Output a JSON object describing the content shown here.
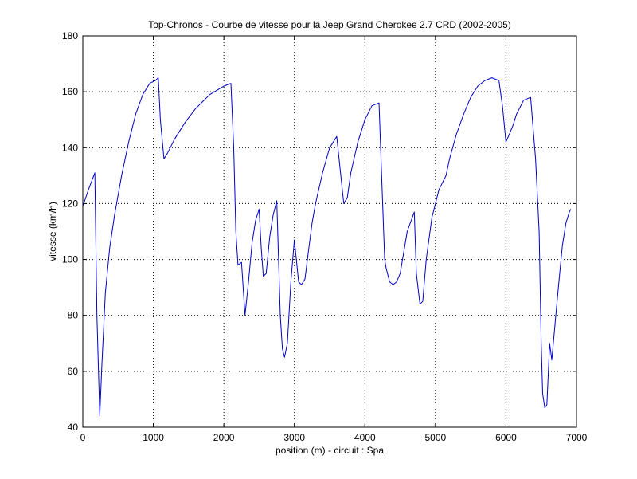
{
  "chart_data": {
    "type": "line",
    "title": "Top-Chronos - Courbe de vitesse pour la Jeep Grand Cherokee 2.7 CRD (2002-2005)",
    "xlabel": "position (m) - circuit : Spa",
    "ylabel": "vitesse (km/h)",
    "xlim": [
      0,
      7000
    ],
    "ylim": [
      40,
      180
    ],
    "xticks": [
      0,
      1000,
      2000,
      3000,
      4000,
      5000,
      6000,
      7000
    ],
    "yticks": [
      40,
      60,
      80,
      100,
      120,
      140,
      160,
      180
    ],
    "grid": true,
    "line_color": "#0000cc",
    "series": [
      {
        "x": [
          0,
          80,
          170,
          200,
          240,
          270,
          320,
          380,
          450,
          550,
          650,
          750,
          850,
          950,
          1030,
          1070,
          1100,
          1150,
          1200,
          1300,
          1450,
          1600,
          1800,
          2000,
          2100,
          2140,
          2170,
          2200,
          2250,
          2300,
          2350,
          2400,
          2450,
          2500,
          2530,
          2560,
          2600,
          2650,
          2700,
          2750,
          2800,
          2830,
          2860,
          2900,
          2950,
          3000,
          3060,
          3100,
          3150,
          3200,
          3250,
          3300,
          3400,
          3500,
          3600,
          3700,
          3750,
          3800,
          3900,
          4000,
          4100,
          4200,
          4280,
          4300,
          4350,
          4400,
          4450,
          4500,
          4600,
          4700,
          4730,
          4780,
          4820,
          4870,
          4950,
          5050,
          5150,
          5200,
          5300,
          5400,
          5500,
          5600,
          5700,
          5800,
          5900,
          5950,
          6000,
          6050,
          6100,
          6150,
          6250,
          6350,
          6420,
          6470,
          6500,
          6520,
          6550,
          6580,
          6620,
          6650,
          6700,
          6750,
          6800,
          6850,
          6900,
          6920
        ],
        "y": [
          119,
          125,
          131,
          80,
          44,
          62,
          88,
          104,
          116,
          130,
          142,
          152,
          159,
          163,
          164,
          165,
          150,
          136,
          138,
          143,
          149,
          154,
          159,
          162,
          163,
          140,
          110,
          98,
          99,
          80,
          92,
          106,
          114,
          118,
          104,
          94,
          95,
          108,
          116,
          121,
          80,
          68,
          65,
          70,
          92,
          107,
          92,
          91,
          93,
          103,
          113,
          120,
          131,
          140,
          144,
          120,
          122,
          131,
          142,
          150,
          155,
          156,
          100,
          97,
          92,
          91,
          92,
          95,
          110,
          117,
          95,
          84,
          85,
          100,
          115,
          125,
          130,
          136,
          145,
          152,
          158,
          162,
          164,
          165,
          164,
          155,
          142,
          145,
          148,
          152,
          157,
          158,
          136,
          110,
          70,
          52,
          47,
          48,
          70,
          64,
          78,
          92,
          105,
          113,
          117,
          118
        ]
      }
    ]
  }
}
